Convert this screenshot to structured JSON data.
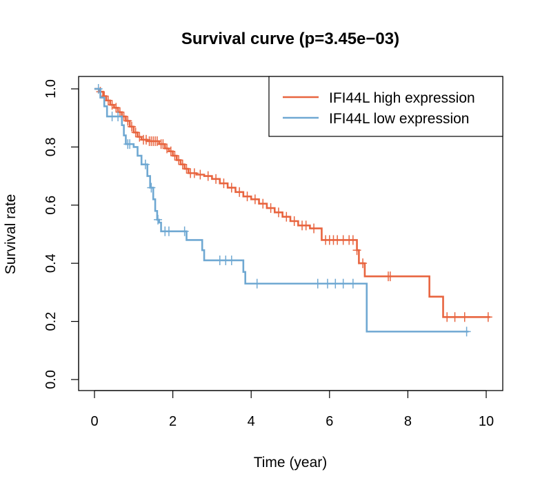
{
  "chart_data": {
    "type": "line",
    "title": "Survival curve (p=3.45e−03)",
    "xlabel": "Time (year)",
    "ylabel": "Survival rate",
    "xlim": [
      0,
      10
    ],
    "ylim": [
      0,
      1
    ],
    "x_ticks": [
      "0",
      "2",
      "4",
      "6",
      "8",
      "10"
    ],
    "y_ticks": [
      "0.0",
      "0.2",
      "0.4",
      "0.6",
      "0.8",
      "1.0"
    ],
    "x_tick_values": [
      0,
      2,
      4,
      6,
      8,
      10
    ],
    "y_tick_values": [
      0,
      0.2,
      0.4,
      0.6,
      0.8,
      1.0
    ],
    "grid": false,
    "legend_position": "top-right",
    "series": [
      {
        "name": "IFI44L high expression",
        "color": "#E8643F",
        "step_points": [
          [
            0,
            1.0
          ],
          [
            0.12,
            0.99
          ],
          [
            0.22,
            0.975
          ],
          [
            0.3,
            0.96
          ],
          [
            0.4,
            0.945
          ],
          [
            0.5,
            0.935
          ],
          [
            0.6,
            0.92
          ],
          [
            0.7,
            0.905
          ],
          [
            0.8,
            0.89
          ],
          [
            0.9,
            0.87
          ],
          [
            1.0,
            0.85
          ],
          [
            1.1,
            0.835
          ],
          [
            1.2,
            0.825
          ],
          [
            1.35,
            0.82
          ],
          [
            1.65,
            0.81
          ],
          [
            1.8,
            0.795
          ],
          [
            1.9,
            0.785
          ],
          [
            2.0,
            0.77
          ],
          [
            2.1,
            0.755
          ],
          [
            2.2,
            0.74
          ],
          [
            2.3,
            0.725
          ],
          [
            2.4,
            0.71
          ],
          [
            2.6,
            0.705
          ],
          [
            2.8,
            0.7
          ],
          [
            3.0,
            0.69
          ],
          [
            3.2,
            0.675
          ],
          [
            3.4,
            0.66
          ],
          [
            3.6,
            0.645
          ],
          [
            3.8,
            0.63
          ],
          [
            4.0,
            0.62
          ],
          [
            4.2,
            0.605
          ],
          [
            4.4,
            0.59
          ],
          [
            4.6,
            0.575
          ],
          [
            4.8,
            0.56
          ],
          [
            5.0,
            0.545
          ],
          [
            5.2,
            0.53
          ],
          [
            5.5,
            0.52
          ],
          [
            5.8,
            0.48
          ],
          [
            6.7,
            0.445
          ],
          [
            6.75,
            0.4
          ],
          [
            6.9,
            0.355
          ],
          [
            8.55,
            0.285
          ],
          [
            8.9,
            0.215
          ],
          [
            10.1,
            0.215
          ]
        ],
        "censor_times": [
          0.15,
          0.25,
          0.35,
          0.45,
          0.55,
          0.65,
          0.75,
          0.85,
          0.95,
          1.05,
          1.15,
          1.25,
          1.32,
          1.4,
          1.45,
          1.5,
          1.55,
          1.6,
          1.7,
          1.75,
          1.85,
          1.95,
          2.05,
          2.15,
          2.25,
          2.35,
          2.45,
          2.55,
          2.7,
          2.9,
          3.1,
          3.3,
          3.5,
          3.7,
          3.9,
          4.1,
          4.3,
          4.5,
          4.7,
          4.9,
          5.1,
          5.3,
          5.4,
          5.6,
          5.9,
          6.0,
          6.1,
          6.2,
          6.35,
          6.5,
          6.6,
          6.7,
          6.85,
          7.5,
          7.55,
          9.0,
          9.2,
          9.45,
          10.05
        ]
      },
      {
        "name": "IFI44L low expression",
        "color": "#6FA8D2",
        "step_points": [
          [
            0,
            1.0
          ],
          [
            0.15,
            0.97
          ],
          [
            0.25,
            0.94
          ],
          [
            0.32,
            0.905
          ],
          [
            0.7,
            0.875
          ],
          [
            0.75,
            0.84
          ],
          [
            0.8,
            0.81
          ],
          [
            1.0,
            0.8
          ],
          [
            1.1,
            0.77
          ],
          [
            1.2,
            0.74
          ],
          [
            1.35,
            0.7
          ],
          [
            1.42,
            0.66
          ],
          [
            1.5,
            0.62
          ],
          [
            1.55,
            0.58
          ],
          [
            1.6,
            0.55
          ],
          [
            1.65,
            0.54
          ],
          [
            1.7,
            0.51
          ],
          [
            2.35,
            0.48
          ],
          [
            2.75,
            0.445
          ],
          [
            2.8,
            0.41
          ],
          [
            3.8,
            0.37
          ],
          [
            3.85,
            0.33
          ],
          [
            6.95,
            0.165
          ],
          [
            9.55,
            0.165
          ]
        ],
        "censor_times": [
          0.1,
          0.45,
          0.6,
          0.85,
          0.9,
          1.3,
          1.45,
          1.62,
          1.8,
          1.9,
          2.3,
          3.2,
          3.35,
          3.5,
          4.15,
          5.7,
          5.95,
          6.15,
          6.35,
          6.6,
          9.5
        ]
      }
    ]
  }
}
